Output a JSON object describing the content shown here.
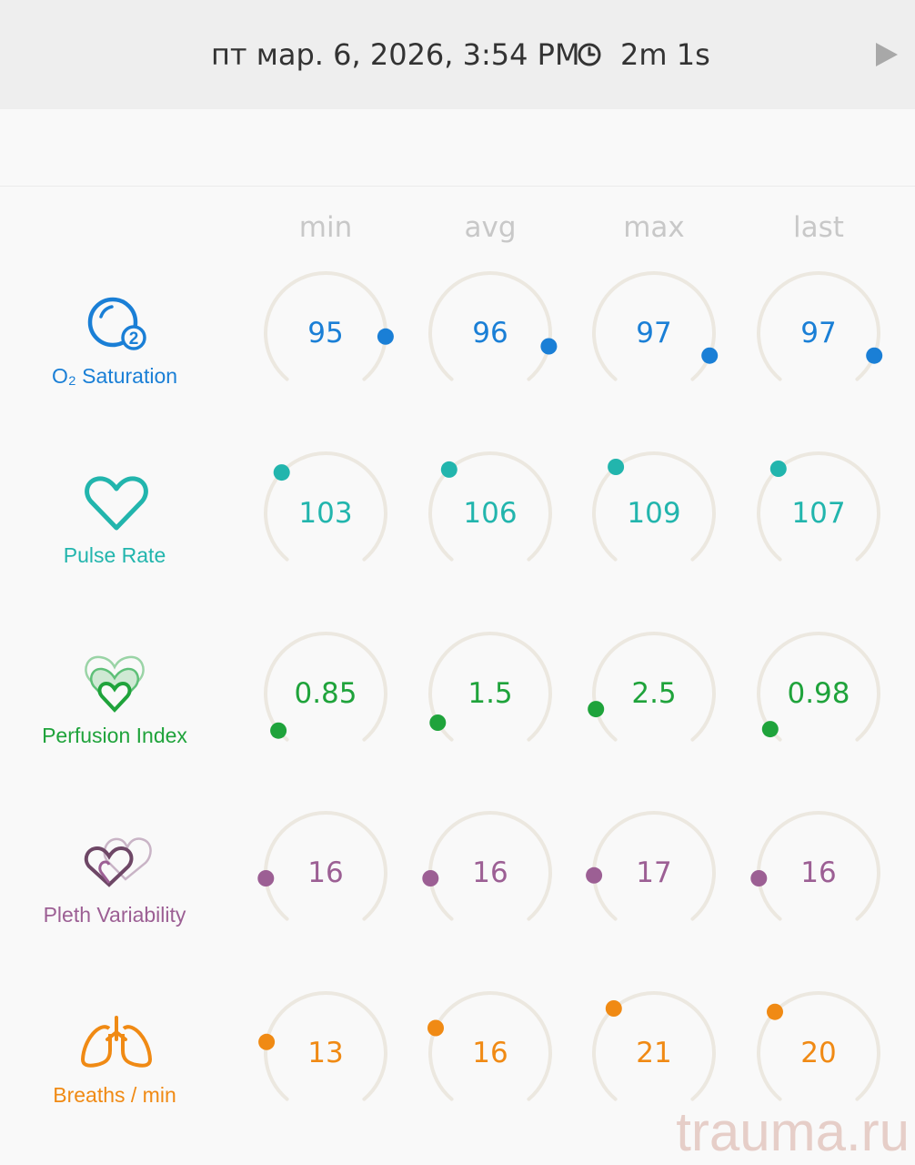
{
  "header": {
    "date": "пт мар. 6, 2026, 3:54 PM",
    "duration": "2m 1s"
  },
  "columns": [
    "min",
    "avg",
    "max",
    "last"
  ],
  "metrics": [
    {
      "label": "O₂ Saturation",
      "icon": "o2-bubble-icon",
      "color": "#1a7fd6",
      "range": [
        70,
        100
      ],
      "values": [
        "95",
        "96",
        "97",
        "97"
      ]
    },
    {
      "label": "Pulse Rate",
      "icon": "heart-outline-icon",
      "color": "#22b5ad",
      "range": [
        30,
        250
      ],
      "values": [
        "103",
        "106",
        "109",
        "107"
      ]
    },
    {
      "label": "Perfusion Index",
      "icon": "stacked-hearts-icon",
      "color": "#1fa33b",
      "range": [
        0,
        20
      ],
      "values": [
        "0.85",
        "1.5",
        "2.5",
        "0.98"
      ]
    },
    {
      "label": "Pleth Variability",
      "icon": "double-hearts-icon",
      "color": "#9c5f94",
      "range": [
        0,
        100
      ],
      "values": [
        "16",
        "16",
        "17",
        "16"
      ]
    },
    {
      "label": "Breaths / min",
      "icon": "lungs-icon",
      "color": "#f08a14",
      "range": [
        0,
        60
      ],
      "values": [
        "13",
        "16",
        "21",
        "20"
      ]
    }
  ],
  "watermark": "trauma.ru"
}
